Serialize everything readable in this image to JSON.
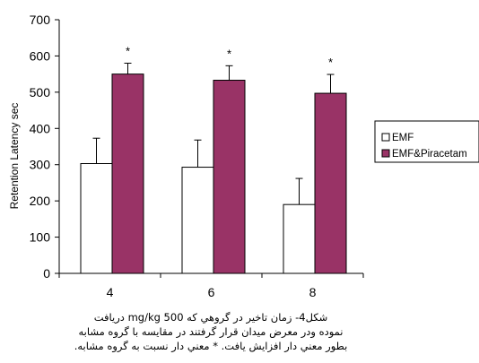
{
  "chart_data": {
    "type": "bar",
    "ylabel": "Retention Latency sec",
    "xlabel": "",
    "categories": [
      "4",
      "6",
      "8"
    ],
    "ylim": [
      0,
      700
    ],
    "yticks": [
      0,
      100,
      200,
      300,
      400,
      500,
      600,
      700
    ],
    "grid": false,
    "legend_position": "right",
    "series": [
      {
        "name": "EMF",
        "values": [
          303,
          293,
          190
        ],
        "errors": [
          70,
          75,
          72
        ],
        "color": "#ffffff"
      },
      {
        "name": "EMF&Piracetam",
        "values": [
          550,
          533,
          497
        ],
        "errors": [
          30,
          40,
          52
        ],
        "color": "#993366",
        "significance": [
          "*",
          "*",
          "*"
        ]
      }
    ]
  },
  "caption": {
    "line1": "شكل4- زمان تاخير در گروهي كه     mg/kg     500  دريافت",
    "line2": "نموده ودر معرض ميدان قرار گرفتند در مقايسه با گروه مشابه",
    "line3": "بطور معني دار افزايش يافت. * معني دار نسبت به گروه  مشابه."
  }
}
